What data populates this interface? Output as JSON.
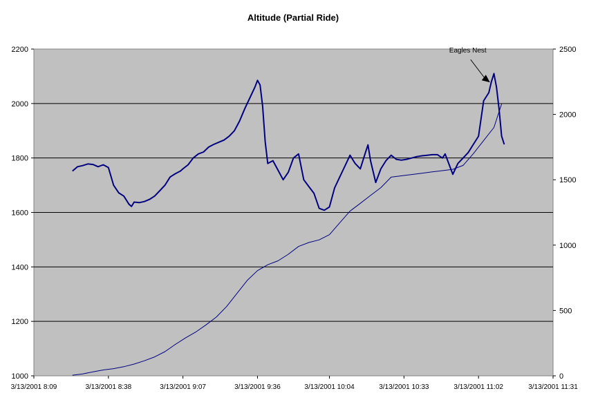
{
  "chart_data": {
    "type": "line",
    "title": "Altitude (Partial Ride)",
    "xlabel": "",
    "ylabel": "",
    "x_tick_labels": [
      "3/13/2001 8:09",
      "3/13/2001 8:38",
      "3/13/2001 9:07",
      "3/13/2001 9:36",
      "3/13/2001 10:04",
      "3/13/2001 10:33",
      "3/13/2001 11:02",
      "3/13/2001 11:31"
    ],
    "xlim": [
      "3/13/2001 8:09",
      "3/13/2001 11:31"
    ],
    "y_left": {
      "lim": [
        1000,
        2200
      ],
      "ticks": [
        1000,
        1200,
        1400,
        1600,
        1800,
        2000,
        2200
      ]
    },
    "y_right": {
      "lim": [
        0,
        2500
      ],
      "ticks": [
        0,
        500,
        1000,
        1500,
        2000,
        2500
      ]
    },
    "grid": "horizontal major gridlines",
    "background": "#c0c0c0",
    "annotation": {
      "text": "Eagles Nest",
      "at": {
        "x": "3/13/2001 11:07",
        "y": 2070
      }
    },
    "series": [
      {
        "axis": "left",
        "color": "#000080",
        "width": 2,
        "x": [
          "8:24",
          "8:26",
          "8:28",
          "8:30",
          "8:32",
          "8:34",
          "8:36",
          "8:38",
          "8:40",
          "8:42",
          "8:44",
          "8:46",
          "8:47",
          "8:48",
          "8:50",
          "8:52",
          "8:54",
          "8:56",
          "8:58",
          "9:00",
          "9:02",
          "9:04",
          "9:06",
          "9:07",
          "9:09",
          "9:11",
          "9:13",
          "9:15",
          "9:17",
          "9:19",
          "9:21",
          "9:23",
          "9:25",
          "9:27",
          "9:29",
          "9:31",
          "9:33",
          "9:35",
          "9:36",
          "9:37",
          "9:38",
          "9:39",
          "9:40",
          "9:42",
          "9:44",
          "9:46",
          "9:48",
          "9:50",
          "9:52",
          "9:54",
          "9:56",
          "9:58",
          "10:00",
          "10:02",
          "10:04",
          "10:06",
          "10:08",
          "10:10",
          "10:12",
          "10:14",
          "10:16",
          "10:18",
          "10:19",
          "10:20",
          "10:22",
          "10:24",
          "10:26",
          "10:28",
          "10:30",
          "10:32",
          "10:34",
          "10:36",
          "10:38",
          "10:40",
          "10:42",
          "10:44",
          "10:46",
          "10:48",
          "10:49",
          "10:50",
          "10:52",
          "10:54",
          "10:56",
          "10:58",
          "11:00",
          "11:02",
          "11:04",
          "11:06",
          "11:07",
          "11:08",
          "11:09",
          "11:10",
          "11:11",
          "11:12"
        ],
        "y": [
          1752,
          1768,
          1772,
          1778,
          1776,
          1768,
          1775,
          1765,
          1700,
          1672,
          1660,
          1630,
          1622,
          1638,
          1636,
          1640,
          1648,
          1660,
          1680,
          1700,
          1730,
          1742,
          1752,
          1760,
          1775,
          1800,
          1815,
          1822,
          1840,
          1850,
          1858,
          1866,
          1880,
          1900,
          1935,
          1980,
          2020,
          2060,
          2085,
          2068,
          1990,
          1860,
          1780,
          1790,
          1755,
          1720,
          1748,
          1800,
          1815,
          1720,
          1695,
          1670,
          1615,
          1608,
          1620,
          1690,
          1730,
          1770,
          1810,
          1780,
          1760,
          1820,
          1848,
          1790,
          1710,
          1760,
          1790,
          1810,
          1795,
          1792,
          1795,
          1800,
          1805,
          1808,
          1810,
          1812,
          1812,
          1800,
          1815,
          1790,
          1740,
          1780,
          1800,
          1820,
          1850,
          1880,
          2010,
          2040,
          2080,
          2110,
          2060,
          1980,
          1880,
          1850
        ]
      },
      {
        "axis": "right",
        "color": "#000080",
        "width": 1,
        "x": [
          "8:24",
          "8:28",
          "8:32",
          "8:36",
          "8:40",
          "8:44",
          "8:48",
          "8:52",
          "8:56",
          "9:00",
          "9:04",
          "9:08",
          "9:12",
          "9:16",
          "9:20",
          "9:24",
          "9:28",
          "9:32",
          "9:36",
          "9:40",
          "9:44",
          "9:48",
          "9:52",
          "9:56",
          "10:00",
          "10:04",
          "10:08",
          "10:12",
          "10:16",
          "10:20",
          "10:24",
          "10:28",
          "10:32",
          "10:36",
          "10:40",
          "10:44",
          "10:48",
          "10:52",
          "10:56",
          "11:00",
          "11:04",
          "11:08",
          "11:11"
        ],
        "y": [
          5,
          15,
          30,
          45,
          55,
          70,
          90,
          115,
          145,
          185,
          240,
          290,
          335,
          390,
          450,
          530,
          630,
          730,
          805,
          850,
          880,
          930,
          990,
          1020,
          1040,
          1080,
          1170,
          1260,
          1320,
          1380,
          1440,
          1520,
          1530,
          1540,
          1550,
          1560,
          1570,
          1580,
          1610,
          1700,
          1800,
          1900,
          2080
        ]
      }
    ]
  }
}
